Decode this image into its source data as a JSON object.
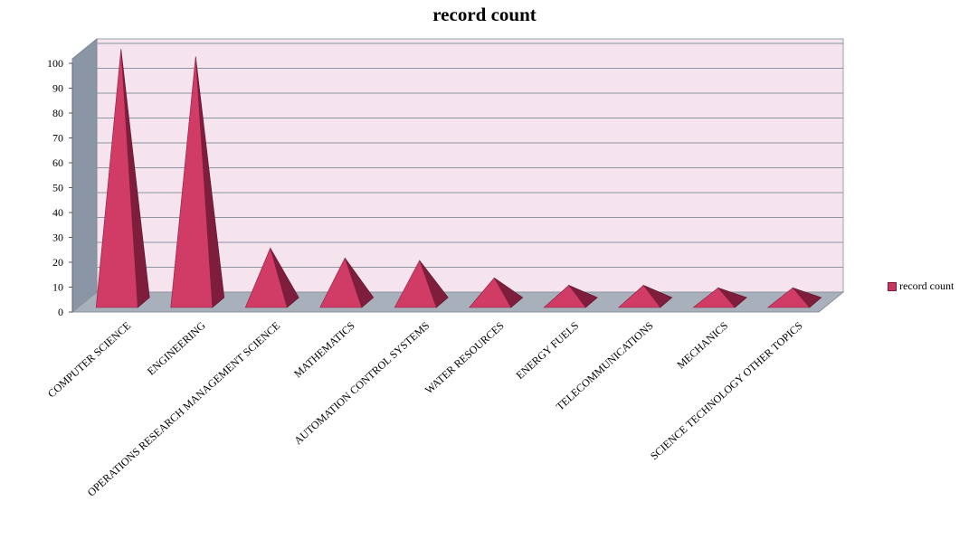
{
  "chart_data": {
    "type": "bar",
    "bar_shape": "3d-pyramid",
    "title": "record count",
    "categories": [
      "COMPUTER SCIENCE",
      "ENGINEERING",
      "OPERATIONS RESEARCH MANAGEMENT  SCIENCE",
      "MATHEMATICS",
      "AUTOMATION CONTROL SYSTEMS",
      "WATER RESOURCES",
      "ENERGY FUELS",
      "TELECOMMUNICATIONS",
      "MECHANICS",
      "SCIENCE TECHNOLOGY  OTHER TOPICS"
    ],
    "series": [
      {
        "name": "record count",
        "values": [
          101,
          98,
          21,
          17,
          16,
          9,
          6,
          6,
          5,
          5
        ]
      }
    ],
    "ylim": [
      0,
      100
    ],
    "yticks": [
      0,
      10,
      20,
      30,
      40,
      50,
      60,
      70,
      80,
      90,
      100
    ],
    "grid": true,
    "legend_position": "right",
    "colors": {
      "bar_front": "#d03c66",
      "bar_side": "#7e1e3c",
      "back_wall": "#f5e3ee",
      "side_wall": "#8a96a6",
      "floor": "#a8b0bb",
      "gridline": "#8c96a2"
    }
  }
}
